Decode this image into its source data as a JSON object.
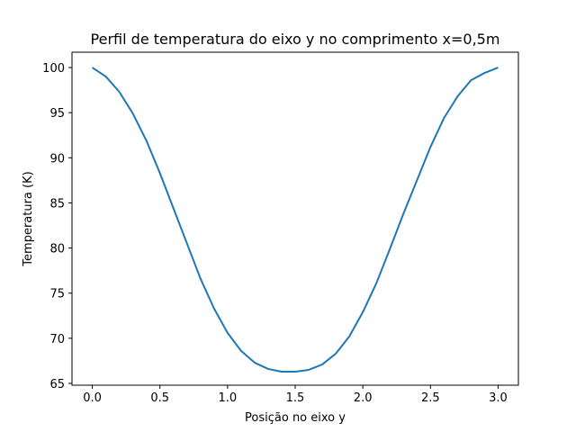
{
  "chart_data": {
    "type": "line",
    "title": "Perfil de temperatura do eixo y no comprimento x=0,5m",
    "xlabel": "Posição no eixo y",
    "ylabel": "Temperatura (K)",
    "xlim": [
      -0.15,
      3.15
    ],
    "ylim": [
      64.8,
      101.7
    ],
    "xticks": [
      0.0,
      0.5,
      1.0,
      1.5,
      2.0,
      2.5,
      3.0
    ],
    "xtick_labels": [
      "0.0",
      "0.5",
      "1.0",
      "1.5",
      "2.0",
      "2.5",
      "3.0"
    ],
    "yticks": [
      65,
      70,
      75,
      80,
      85,
      90,
      95,
      100
    ],
    "ytick_labels": [
      "65",
      "70",
      "75",
      "80",
      "85",
      "90",
      "95",
      "100"
    ],
    "grid": false,
    "series": [
      {
        "color": "#1f77b4",
        "x": [
          0.0,
          0.1,
          0.2,
          0.3,
          0.4,
          0.5,
          0.6,
          0.7,
          0.8,
          0.9,
          1.0,
          1.1,
          1.2,
          1.3,
          1.4,
          1.5,
          1.6,
          1.7,
          1.8,
          1.9,
          2.0,
          2.1,
          2.2,
          2.3,
          2.4,
          2.5,
          2.6,
          2.7,
          2.8,
          2.9,
          3.0
        ],
        "y": [
          100.0,
          99.0,
          97.3,
          94.9,
          91.9,
          88.3,
          84.4,
          80.5,
          76.6,
          73.3,
          70.6,
          68.6,
          67.3,
          66.6,
          66.3,
          66.3,
          66.5,
          67.1,
          68.3,
          70.2,
          72.9,
          76.1,
          79.9,
          83.8,
          87.5,
          91.2,
          94.4,
          96.8,
          98.6,
          99.4,
          100.0
        ]
      }
    ]
  }
}
